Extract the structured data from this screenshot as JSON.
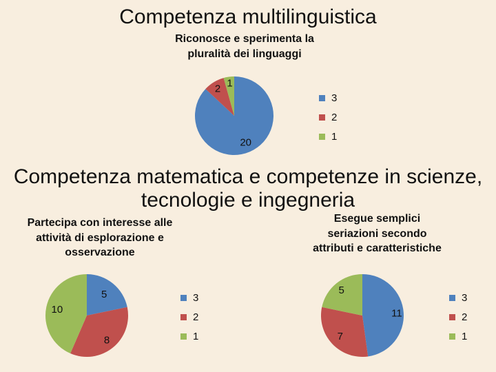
{
  "sections": [
    {
      "heading_lines": [
        "Competenza multilinguistica"
      ]
    },
    {
      "heading_lines": [
        "Competenza matematica e competenze in scienze,",
        "tecnologie e ingegneria"
      ]
    }
  ],
  "colors": {
    "3": "#4f81bd",
    "2": "#c0504d",
    "1": "#9bbb59",
    "background": "#f8eedf"
  },
  "chart_data": [
    {
      "type": "pie",
      "title_lines": [
        "Riconosce e sperimenta la",
        "pluralità dei linguaggi"
      ],
      "categories": [
        "3",
        "2",
        "1"
      ],
      "values": [
        20,
        2,
        1
      ],
      "legend": [
        "3",
        "2",
        "1"
      ],
      "legend_position": "right"
    },
    {
      "type": "pie",
      "title_lines": [
        "Partecipa con interesse alle",
        "attività di esplorazione e",
        "osservazione"
      ],
      "categories": [
        "3",
        "2",
        "1"
      ],
      "values": [
        5,
        8,
        10
      ],
      "legend": [
        "3",
        "2",
        "1"
      ],
      "legend_position": "right"
    },
    {
      "type": "pie",
      "title_lines": [
        "Esegue semplici",
        "seriazioni secondo",
        "attributi e caratteristiche"
      ],
      "categories": [
        "3",
        "2",
        "1"
      ],
      "values": [
        11,
        7,
        5
      ],
      "legend": [
        "3",
        "2",
        "1"
      ],
      "legend_position": "right"
    }
  ]
}
